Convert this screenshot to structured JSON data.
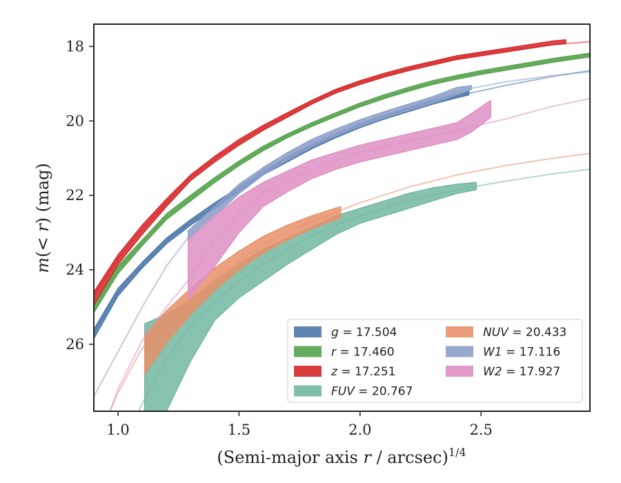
{
  "chart_data": {
    "type": "line",
    "title": "",
    "xlabel": "(Semi-major axis r / arcsec)^(1/4)",
    "ylabel": "m(< r) (mag)",
    "xlim": [
      0.9,
      2.95
    ],
    "ylim": [
      27.8,
      17.4
    ],
    "y_inverted": true,
    "grid": false,
    "legend_position": "lower-right",
    "legend_columns": 2,
    "x_ticks": [
      1.0,
      1.5,
      2.0,
      2.5
    ],
    "y_ticks": [
      18,
      20,
      22,
      24,
      26
    ],
    "series": [
      {
        "name": "g = 17.504",
        "color": "#4c78a8",
        "band": [
          [
            0.9,
            25.85,
            25.6
          ],
          [
            1.0,
            24.7,
            24.5
          ],
          [
            1.1,
            23.95,
            23.8
          ],
          [
            1.2,
            23.3,
            23.15
          ],
          [
            1.3,
            22.8,
            22.65
          ],
          [
            1.4,
            22.35,
            22.2
          ],
          [
            1.5,
            21.9,
            21.78
          ],
          [
            1.6,
            21.45,
            21.33
          ],
          [
            1.7,
            21.1,
            20.98
          ],
          [
            1.8,
            20.75,
            20.65
          ],
          [
            1.9,
            20.45,
            20.35
          ],
          [
            2.0,
            20.18,
            20.08
          ],
          [
            2.1,
            19.95,
            19.85
          ],
          [
            2.2,
            19.75,
            19.65
          ],
          [
            2.3,
            19.55,
            19.45
          ],
          [
            2.4,
            19.38,
            19.28
          ],
          [
            2.45,
            19.3,
            19.2
          ]
        ],
        "model": [
          [
            0.9,
            25.7
          ],
          [
            1.0,
            24.6
          ],
          [
            1.1,
            23.88
          ],
          [
            1.2,
            23.22
          ],
          [
            1.3,
            22.72
          ],
          [
            1.4,
            22.28
          ],
          [
            1.5,
            21.84
          ],
          [
            1.6,
            21.39
          ],
          [
            1.7,
            21.04
          ],
          [
            1.8,
            20.7
          ],
          [
            1.9,
            20.4
          ],
          [
            2.0,
            20.13
          ],
          [
            2.2,
            19.7
          ],
          [
            2.4,
            19.33
          ],
          [
            2.6,
            19.05
          ],
          [
            2.8,
            18.8
          ],
          [
            2.95,
            18.65
          ]
        ]
      },
      {
        "name": "r = 17.460",
        "color": "#54a24b",
        "band": [
          [
            0.9,
            25.15,
            24.95
          ],
          [
            1.0,
            24.1,
            23.9
          ],
          [
            1.1,
            23.35,
            23.2
          ],
          [
            1.2,
            22.65,
            22.5
          ],
          [
            1.3,
            22.15,
            22.0
          ],
          [
            1.4,
            21.65,
            21.52
          ],
          [
            1.5,
            21.2,
            21.08
          ],
          [
            1.6,
            20.8,
            20.68
          ],
          [
            1.7,
            20.45,
            20.35
          ],
          [
            1.8,
            20.15,
            20.05
          ],
          [
            1.9,
            19.88,
            19.78
          ],
          [
            2.0,
            19.62,
            19.52
          ],
          [
            2.1,
            19.4,
            19.3
          ],
          [
            2.2,
            19.2,
            19.1
          ],
          [
            2.3,
            19.02,
            18.92
          ],
          [
            2.4,
            18.88,
            18.78
          ],
          [
            2.5,
            18.75,
            18.65
          ],
          [
            2.6,
            18.64,
            18.54
          ],
          [
            2.7,
            18.53,
            18.43
          ],
          [
            2.8,
            18.42,
            18.32
          ],
          [
            2.95,
            18.28,
            18.18
          ]
        ],
        "model": [
          [
            0.9,
            25.05
          ],
          [
            1.0,
            24.0
          ],
          [
            1.1,
            23.28
          ],
          [
            1.2,
            22.58
          ],
          [
            1.3,
            22.08
          ],
          [
            1.4,
            21.58
          ],
          [
            1.5,
            21.14
          ],
          [
            1.6,
            20.74
          ],
          [
            1.7,
            20.4
          ],
          [
            1.8,
            20.1
          ],
          [
            2.0,
            19.57
          ],
          [
            2.2,
            19.15
          ],
          [
            2.4,
            18.83
          ],
          [
            2.6,
            18.59
          ],
          [
            2.8,
            18.37
          ],
          [
            2.95,
            18.23
          ]
        ]
      },
      {
        "name": "z = 17.251",
        "color": "#d62728",
        "band": [
          [
            0.9,
            24.95,
            24.6
          ],
          [
            1.0,
            23.85,
            23.6
          ],
          [
            1.1,
            23.05,
            22.8
          ],
          [
            1.2,
            22.3,
            22.1
          ],
          [
            1.3,
            21.6,
            21.45
          ],
          [
            1.4,
            21.1,
            20.95
          ],
          [
            1.5,
            20.65,
            20.5
          ],
          [
            1.6,
            20.25,
            20.12
          ],
          [
            1.7,
            19.9,
            19.78
          ],
          [
            1.8,
            19.55,
            19.45
          ],
          [
            1.9,
            19.25,
            19.15
          ],
          [
            2.0,
            19.02,
            18.92
          ],
          [
            2.1,
            18.82,
            18.72
          ],
          [
            2.2,
            18.65,
            18.55
          ],
          [
            2.3,
            18.5,
            18.4
          ],
          [
            2.4,
            18.35,
            18.25
          ],
          [
            2.5,
            18.25,
            18.15
          ],
          [
            2.6,
            18.15,
            18.05
          ],
          [
            2.7,
            18.05,
            17.95
          ],
          [
            2.8,
            17.95,
            17.85
          ],
          [
            2.85,
            17.92,
            17.82
          ]
        ],
        "model": [
          [
            0.9,
            24.7
          ],
          [
            1.0,
            23.7
          ],
          [
            1.1,
            22.9
          ],
          [
            1.2,
            22.2
          ],
          [
            1.3,
            21.52
          ],
          [
            1.4,
            21.02
          ],
          [
            1.5,
            20.57
          ],
          [
            1.6,
            20.18
          ],
          [
            1.7,
            19.84
          ],
          [
            1.8,
            19.5
          ],
          [
            1.9,
            19.2
          ],
          [
            2.0,
            18.97
          ],
          [
            2.2,
            18.6
          ],
          [
            2.4,
            18.3
          ],
          [
            2.6,
            18.1
          ],
          [
            2.8,
            17.95
          ],
          [
            2.95,
            17.87
          ]
        ]
      },
      {
        "name": "FUV = 20.767",
        "color": "#72b7a1",
        "band": [
          [
            1.11,
            27.8,
            25.45
          ],
          [
            1.2,
            27.8,
            25.2
          ],
          [
            1.3,
            26.45,
            24.8
          ],
          [
            1.4,
            25.35,
            24.3
          ],
          [
            1.5,
            24.75,
            23.85
          ],
          [
            1.6,
            24.3,
            23.45
          ],
          [
            1.7,
            23.85,
            23.15
          ],
          [
            1.8,
            23.45,
            22.85
          ],
          [
            1.9,
            23.05,
            22.55
          ],
          [
            2.0,
            22.75,
            22.35
          ],
          [
            2.1,
            22.55,
            22.15
          ],
          [
            2.2,
            22.35,
            21.95
          ],
          [
            2.3,
            22.15,
            21.8
          ],
          [
            2.4,
            21.95,
            21.7
          ],
          [
            2.48,
            21.85,
            21.65
          ]
        ],
        "model": [
          [
            1.05,
            28.3
          ],
          [
            1.1,
            27.6
          ],
          [
            1.2,
            26.4
          ],
          [
            1.3,
            25.5
          ],
          [
            1.4,
            24.85
          ],
          [
            1.5,
            24.3
          ],
          [
            1.6,
            23.85
          ],
          [
            1.7,
            23.45
          ],
          [
            1.8,
            23.1
          ],
          [
            1.9,
            22.8
          ],
          [
            2.0,
            22.55
          ],
          [
            2.2,
            22.15
          ],
          [
            2.4,
            21.85
          ],
          [
            2.6,
            21.62
          ],
          [
            2.8,
            21.42
          ],
          [
            2.95,
            21.3
          ]
        ]
      },
      {
        "name": "NUV = 20.433",
        "color": "#e8916a",
        "band": [
          [
            1.11,
            26.8,
            25.75
          ],
          [
            1.2,
            25.95,
            25.1
          ],
          [
            1.3,
            25.2,
            24.5
          ],
          [
            1.4,
            24.55,
            23.95
          ],
          [
            1.5,
            24.0,
            23.5
          ],
          [
            1.6,
            23.55,
            23.1
          ],
          [
            1.7,
            23.2,
            22.8
          ],
          [
            1.8,
            22.9,
            22.55
          ],
          [
            1.92,
            22.6,
            22.3
          ]
        ],
        "model": [
          [
            0.9,
            28.8
          ],
          [
            1.0,
            27.3
          ],
          [
            1.1,
            26.1
          ],
          [
            1.2,
            25.45
          ],
          [
            1.3,
            24.85
          ],
          [
            1.4,
            24.25
          ],
          [
            1.5,
            23.75
          ],
          [
            1.6,
            23.33
          ],
          [
            1.7,
            22.98
          ],
          [
            1.8,
            22.7
          ],
          [
            2.0,
            22.2
          ],
          [
            2.2,
            21.78
          ],
          [
            2.4,
            21.45
          ],
          [
            2.6,
            21.2
          ],
          [
            2.8,
            21.0
          ],
          [
            2.95,
            20.87
          ]
        ]
      },
      {
        "name": "W1 = 17.116",
        "color": "#8c9fc9",
        "band": [
          [
            1.29,
            23.2,
            22.95
          ],
          [
            1.4,
            22.55,
            22.3
          ],
          [
            1.5,
            21.95,
            21.7
          ],
          [
            1.6,
            21.45,
            21.25
          ],
          [
            1.7,
            21.05,
            20.85
          ],
          [
            1.8,
            20.7,
            20.5
          ],
          [
            1.9,
            20.4,
            20.22
          ],
          [
            2.0,
            20.15,
            19.97
          ],
          [
            2.1,
            19.92,
            19.75
          ],
          [
            2.2,
            19.72,
            19.55
          ],
          [
            2.3,
            19.52,
            19.35
          ],
          [
            2.4,
            19.3,
            19.1
          ],
          [
            2.46,
            19.15,
            19.05
          ]
        ],
        "model": [
          [
            0.9,
            27.4
          ],
          [
            1.0,
            26.2
          ],
          [
            1.1,
            25.0
          ],
          [
            1.2,
            23.9
          ],
          [
            1.3,
            23.05
          ],
          [
            1.4,
            22.42
          ],
          [
            1.5,
            21.83
          ],
          [
            1.6,
            21.35
          ],
          [
            1.7,
            20.95
          ],
          [
            1.8,
            20.6
          ],
          [
            2.0,
            20.06
          ],
          [
            2.2,
            19.63
          ],
          [
            2.4,
            19.2
          ],
          [
            2.6,
            18.95
          ],
          [
            2.8,
            18.78
          ],
          [
            2.95,
            18.68
          ]
        ]
      },
      {
        "name": "W2 = 17.927",
        "color": "#de8fc4",
        "band": [
          [
            1.29,
            24.8,
            23.2
          ],
          [
            1.4,
            23.9,
            22.55
          ],
          [
            1.5,
            23.0,
            22.05
          ],
          [
            1.6,
            22.3,
            21.65
          ],
          [
            1.7,
            21.9,
            21.35
          ],
          [
            1.8,
            21.55,
            21.05
          ],
          [
            1.9,
            21.3,
            20.85
          ],
          [
            2.0,
            21.1,
            20.65
          ],
          [
            2.1,
            20.95,
            20.5
          ],
          [
            2.2,
            20.8,
            20.35
          ],
          [
            2.3,
            20.65,
            20.2
          ],
          [
            2.4,
            20.5,
            20.05
          ],
          [
            2.46,
            20.3,
            19.8
          ],
          [
            2.54,
            19.9,
            19.45
          ]
        ],
        "model": [
          [
            0.9,
            29.0
          ],
          [
            1.0,
            27.2
          ],
          [
            1.1,
            25.9
          ],
          [
            1.2,
            25.0
          ],
          [
            1.3,
            24.2
          ],
          [
            1.4,
            23.2
          ],
          [
            1.5,
            22.5
          ],
          [
            1.6,
            21.95
          ],
          [
            1.7,
            21.6
          ],
          [
            1.8,
            21.3
          ],
          [
            2.0,
            20.85
          ],
          [
            2.2,
            20.55
          ],
          [
            2.4,
            20.25
          ],
          [
            2.6,
            19.95
          ],
          [
            2.8,
            19.6
          ],
          [
            2.95,
            19.4
          ]
        ]
      }
    ]
  }
}
